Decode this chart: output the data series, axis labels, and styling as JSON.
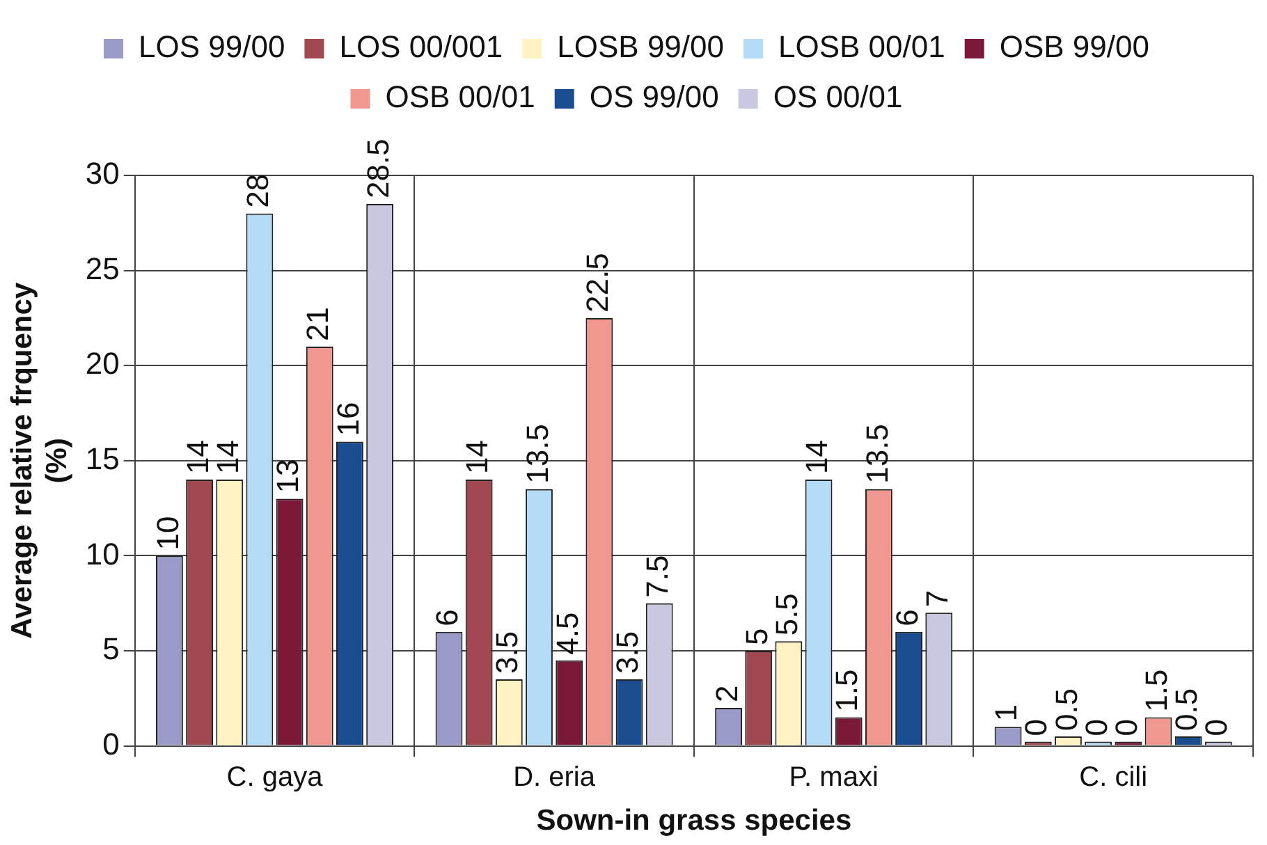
{
  "chart_data": {
    "type": "bar",
    "xlabel": "Sown-in grass species",
    "ylabel": "Average relative frquency (%)",
    "categories": [
      "C. gaya",
      "D. eria",
      "P. maxi",
      "C. cili"
    ],
    "series": [
      {
        "name": "LOS 99/00",
        "color": "#9a9ac8",
        "values": [
          10,
          6,
          2,
          1
        ]
      },
      {
        "name": "LOS 00/001",
        "color": "#a04850",
        "values": [
          14,
          14,
          5,
          0
        ]
      },
      {
        "name": "LOSB 99/00",
        "color": "#fff3c4",
        "values": [
          14,
          3.5,
          5.5,
          0.5
        ]
      },
      {
        "name": "LOSB 00/01",
        "color": "#b4dcf6",
        "values": [
          28,
          13.5,
          14,
          0
        ]
      },
      {
        "name": "OSB 99/00",
        "color": "#7a1a38",
        "values": [
          13,
          4.5,
          1.5,
          0
        ]
      },
      {
        "name": "OSB 00/01",
        "color": "#f09890",
        "values": [
          21,
          22.5,
          13.5,
          1.5
        ]
      },
      {
        "name": "OS 99/00",
        "color": "#1a4c90",
        "values": [
          16,
          3.5,
          6,
          0.5
        ]
      },
      {
        "name": "OS 00/01",
        "color": "#c8c8e0",
        "values": [
          28.5,
          7.5,
          7,
          0
        ]
      }
    ],
    "ylim": [
      0,
      30
    ],
    "yticks": [
      0,
      5,
      10,
      15,
      20,
      25,
      30
    ],
    "grid": true,
    "legend": "top",
    "data_labels": true
  }
}
